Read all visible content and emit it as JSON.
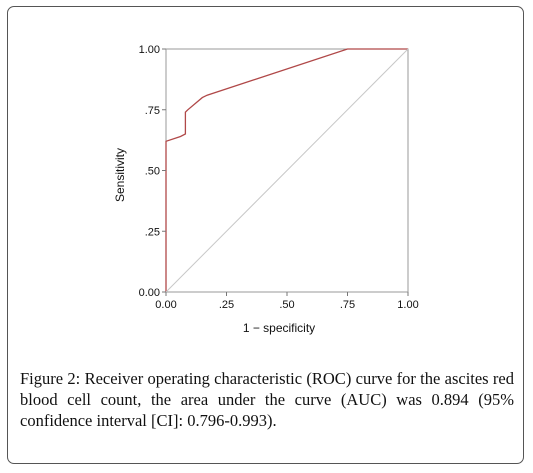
{
  "chart_data": {
    "type": "line",
    "xlabel": "1 − specificity",
    "ylabel": "Sensitivity",
    "xlim": [
      0,
      1
    ],
    "ylim": [
      0,
      1
    ],
    "x_ticks": [
      0,
      0.25,
      0.5,
      0.75,
      1
    ],
    "x_tick_labels": [
      "0.00",
      ".25",
      ".50",
      ".75",
      "1.00"
    ],
    "y_ticks": [
      0,
      0.25,
      0.5,
      0.75,
      1
    ],
    "y_tick_labels": [
      "0.00",
      ".25",
      ".50",
      ".75",
      "1.00"
    ],
    "grid": false,
    "series": [
      {
        "role": "roc",
        "color": "#b04848",
        "x": [
          0,
          0,
          0.06,
          0.08,
          0.08,
          0.08,
          0.09,
          0.15,
          0.17,
          0.75,
          1
        ],
        "y": [
          0,
          0.62,
          0.64,
          0.65,
          0.7,
          0.74,
          0.75,
          0.8,
          0.81,
          1,
          1
        ]
      },
      {
        "role": "reference",
        "color": "#c8c8c8",
        "x": [
          0,
          1
        ],
        "y": [
          0,
          1
        ]
      }
    ]
  },
  "caption": {
    "label": "Figure 2:",
    "text": "Receiver operating characteristic (ROC) curve for the ascites red blood cell count, the area under the curve (AUC) was 0.894 (95% confidence interval [CI]: 0.796-0.993)."
  }
}
